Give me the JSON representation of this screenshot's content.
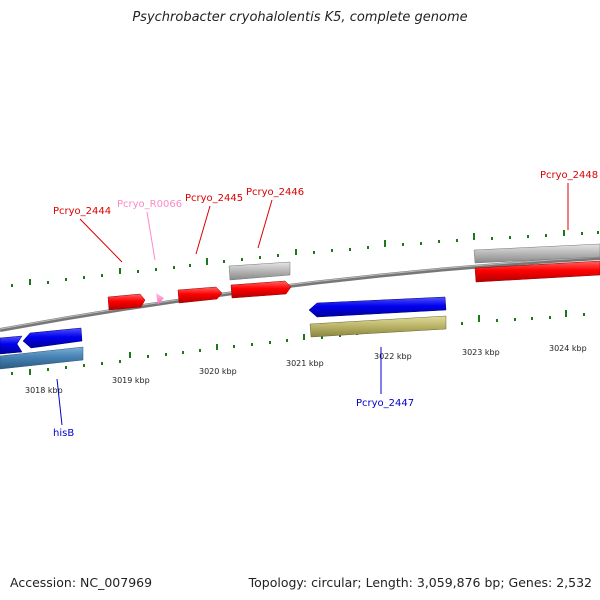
{
  "title": "Psychrobacter cryohalolentis K5, complete genome",
  "footer": {
    "accession": "Accession: NC_007969",
    "summary": "Topology: circular; Length: 3,059,876 bp; Genes: 2,532"
  },
  "colors": {
    "red_gene": "#ff0000",
    "pink_gene": "#ff88c8",
    "blue_gene": "#0000ee",
    "steel_gene": "#4682b4",
    "grey_gene": "#bbbbbb",
    "khaki_gene": "#bdb76b",
    "backbone": "#777777",
    "tick": "#1a7a1a"
  },
  "scale": {
    "unit": "kbp",
    "ticks": [
      {
        "label": "3018 kbp"
      },
      {
        "label": "3019 kbp"
      },
      {
        "label": "3020 kbp"
      },
      {
        "label": "3021 kbp"
      },
      {
        "label": "3022 kbp"
      },
      {
        "label": "3023 kbp"
      },
      {
        "label": "3024 kbp"
      }
    ]
  },
  "gene_labels": [
    {
      "name": "Pcryo_2444",
      "color": "#dd0000"
    },
    {
      "name": "Pcryo_R0066",
      "color": "#ff88c8"
    },
    {
      "name": "Pcryo_2445",
      "color": "#dd0000"
    },
    {
      "name": "Pcryo_2446",
      "color": "#dd0000"
    },
    {
      "name": "Pcryo_2448",
      "color": "#dd0000"
    },
    {
      "name": "Pcryo_2447",
      "color": "#0000cc"
    },
    {
      "name": "hisB",
      "color": "#0000cc"
    }
  ]
}
